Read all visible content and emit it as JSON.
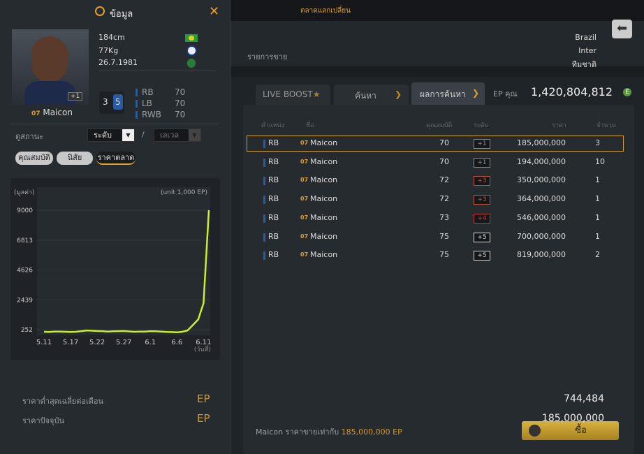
{
  "top_bar": {
    "title": "ตลาดแลกเปลี่ยน",
    "subtitle": "รายการขาย"
  },
  "info_panel": {
    "title": "ข้อมูล",
    "player": {
      "season": "07",
      "name": "Maicon",
      "plus": "+1",
      "height": "184cm",
      "weight": "77Kg",
      "birth": "26.7.1981",
      "nation": "Brazil",
      "club": "Inter",
      "national_team": "ทีมชาติ",
      "skill_left": "3",
      "skill_right": "5",
      "positions": [
        {
          "pos": "RB",
          "rating": 70
        },
        {
          "pos": "LB",
          "rating": 70
        },
        {
          "pos": "RWB",
          "rating": 70
        }
      ]
    },
    "filters": {
      "label": "ดูสถานะ",
      "level": "ระดับ",
      "separator": "/",
      "grade": "เลเวล"
    },
    "tabs": [
      "คุณสมบัติ",
      "นิสัย",
      "ราคาตลาด"
    ],
    "summary": [
      {
        "label": "ราคาต่ำสุดเฉลี่ยต่อเดือน",
        "value": "744,484",
        "unit": "EP"
      },
      {
        "label": "ราคาปัจจุบัน",
        "value": "185,000,000",
        "unit": "EP"
      }
    ]
  },
  "chart_data": {
    "type": "line",
    "y_label": "(มูลค่า)",
    "annotation": "(unit 1,000 EP)",
    "x_label": "(วันที่)",
    "categories": [
      "5.11",
      null,
      null,
      null,
      null,
      "5.17",
      null,
      null,
      null,
      null,
      "5.22",
      null,
      null,
      null,
      null,
      "5.27",
      null,
      null,
      null,
      null,
      "6.1",
      null,
      null,
      null,
      null,
      "6.6",
      null,
      null,
      null,
      null,
      "6.11",
      null
    ],
    "values": [
      100,
      90,
      110,
      120,
      100,
      90,
      100,
      150,
      200,
      180,
      160,
      150,
      120,
      140,
      150,
      160,
      130,
      100,
      110,
      120,
      150,
      140,
      110,
      90,
      80,
      60,
      100,
      200,
      600,
      1000,
      2200,
      9000
    ],
    "color": "#c8f02a",
    "ylim": [
      0,
      9000
    ],
    "yticks": [
      252,
      2439,
      4626,
      6813,
      9000
    ],
    "grid": true
  },
  "market": {
    "tabs": [
      "LIVE BOOST",
      "ค้นหา",
      "ผลการค้นหา"
    ],
    "ep_label": "EP คุณ",
    "ep_value": "1,420,804,812",
    "columns": [
      "ตำแหน่ง",
      "ชื่อ",
      "คุณสมบัติ",
      "ระดับ",
      "ราคา",
      "จำนวน"
    ],
    "rows": [
      {
        "position": "RB",
        "season": "07",
        "name": "Maicon",
        "ovr": 70,
        "level": "+1",
        "level_color": "#8a8a8a",
        "price": "185,000,000",
        "count": 3
      },
      {
        "position": "RB",
        "season": "07",
        "name": "Maicon",
        "ovr": 70,
        "level": "+1",
        "level_color": "#8a8a8a",
        "price": "194,000,000",
        "count": 10
      },
      {
        "position": "RB",
        "season": "07",
        "name": "Maicon",
        "ovr": 72,
        "level": "+3",
        "level_color": "#c0543a",
        "price": "350,000,000",
        "count": 1
      },
      {
        "position": "RB",
        "season": "07",
        "name": "Maicon",
        "ovr": 72,
        "level": "+3",
        "level_color": "#c0543a",
        "price": "364,000,000",
        "count": 1
      },
      {
        "position": "RB",
        "season": "07",
        "name": "Maicon",
        "ovr": 73,
        "level": "+4",
        "level_color": "#c03a3a",
        "price": "546,000,000",
        "count": 1
      },
      {
        "position": "RB",
        "season": "07",
        "name": "Maicon",
        "ovr": 75,
        "level": "+5",
        "level_color": "#d8d8d8",
        "price": "700,000,000",
        "count": 1
      },
      {
        "position": "RB",
        "season": "07",
        "name": "Maicon",
        "ovr": 75,
        "level": "+5",
        "level_color": "#d8d8d8",
        "price": "819,000,000",
        "count": 2
      }
    ],
    "footer": {
      "name": "Maicon",
      "text": "ราคาขายเท่ากับ",
      "price": "185,000,000 EP"
    },
    "buy": "ซื้อ"
  }
}
